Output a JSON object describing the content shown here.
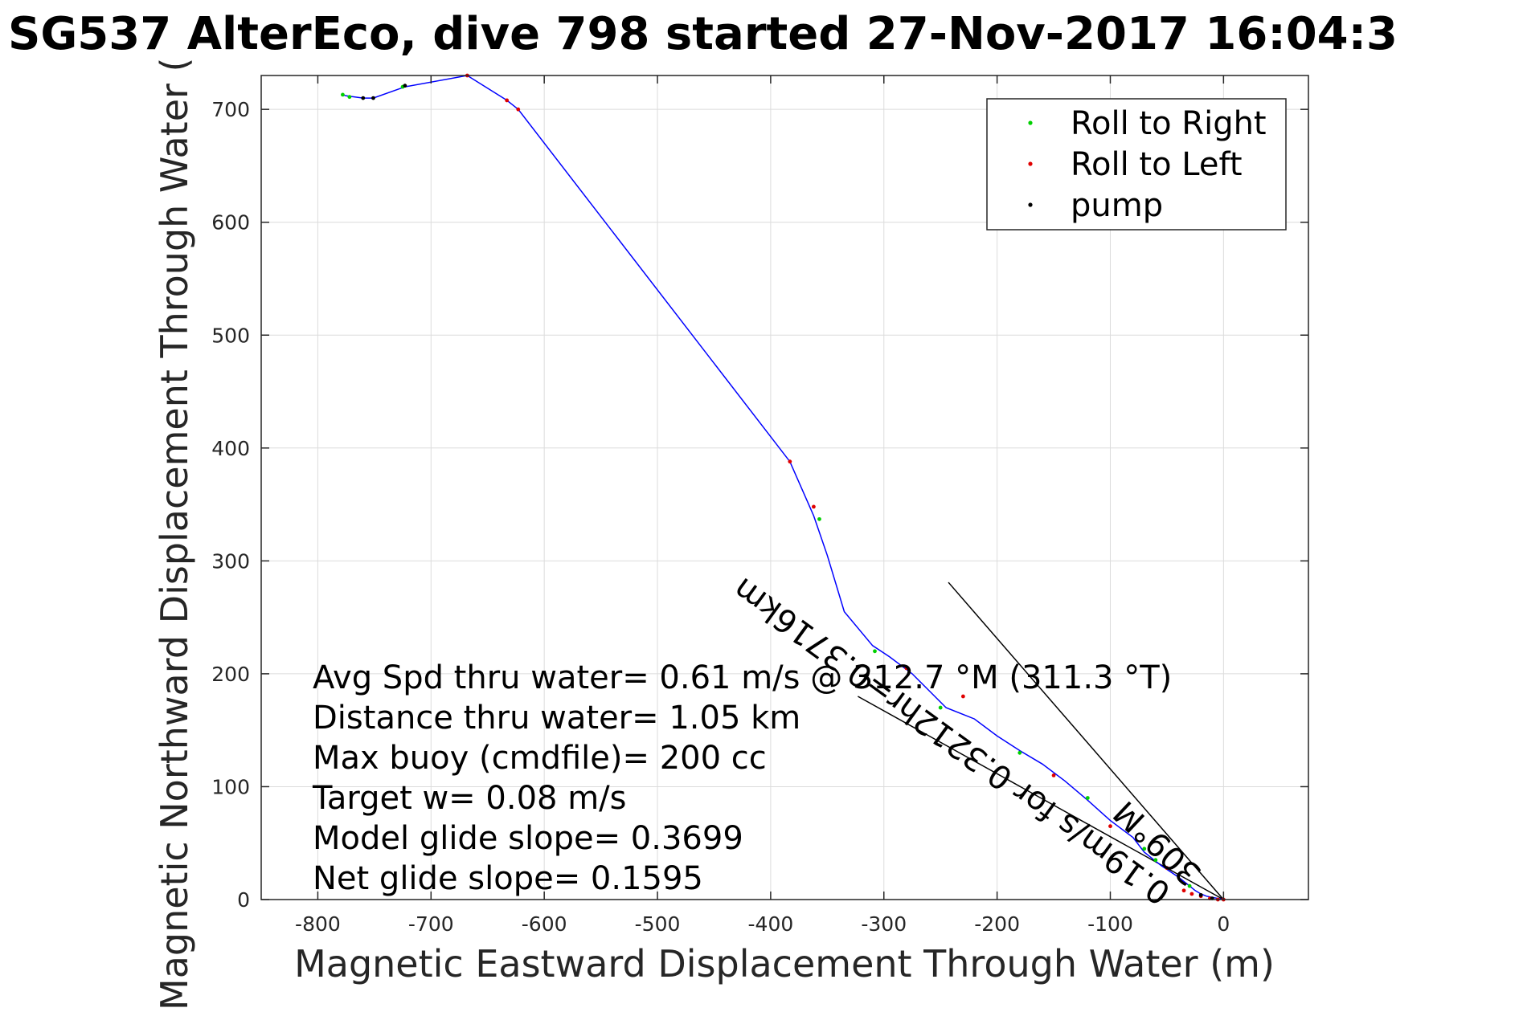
{
  "chart_data": {
    "type": "line",
    "title": "SG537 AlterEco, dive 798 started 27-Nov-2017 16:04:3",
    "xlabel": "Magnetic Eastward Displacement Through Water (m)",
    "ylabel": "Magnetic Northward Displacement Through Water (",
    "xlim": [
      -850,
      75
    ],
    "ylim": [
      0,
      730
    ],
    "xticks": [
      -800,
      -700,
      -600,
      -500,
      -400,
      -300,
      -200,
      -100,
      0
    ],
    "yticks": [
      0,
      100,
      200,
      300,
      400,
      500,
      600,
      700
    ],
    "grid": true,
    "legend_position": "top-right",
    "track": {
      "color": "#0000ff",
      "points": [
        [
          0,
          0
        ],
        [
          -5,
          1
        ],
        [
          -10,
          2
        ],
        [
          -15,
          3
        ],
        [
          -20,
          5
        ],
        [
          -25,
          8
        ],
        [
          -30,
          12
        ],
        [
          -40,
          20
        ],
        [
          -55,
          30
        ],
        [
          -70,
          42
        ],
        [
          -80,
          55
        ],
        [
          -100,
          70
        ],
        [
          -120,
          88
        ],
        [
          -140,
          105
        ],
        [
          -160,
          120
        ],
        [
          -180,
          132
        ],
        [
          -200,
          145
        ],
        [
          -220,
          160
        ],
        [
          -245,
          170
        ],
        [
          -260,
          185
        ],
        [
          -275,
          200
        ],
        [
          -295,
          215
        ],
        [
          -310,
          225
        ],
        [
          -335,
          255
        ],
        [
          -350,
          305
        ],
        [
          -362,
          340
        ],
        [
          -383,
          388
        ],
        [
          -623,
          700
        ],
        [
          -633,
          708
        ],
        [
          -668,
          730
        ],
        [
          -723,
          720
        ],
        [
          -751,
          710
        ],
        [
          -760,
          710
        ],
        [
          -775,
          712
        ],
        [
          -778,
          713
        ]
      ]
    },
    "series": [
      {
        "name": "Roll to Right",
        "color": "#00d000",
        "points": [
          [
            -778,
            713
          ],
          [
            -772,
            711
          ],
          [
            -725,
            720
          ],
          [
            -357,
            337
          ],
          [
            -308,
            220
          ],
          [
            -250,
            170
          ],
          [
            -180,
            130
          ],
          [
            -120,
            90
          ],
          [
            -70,
            45
          ],
          [
            -60,
            35
          ],
          [
            -30,
            12
          ]
        ]
      },
      {
        "name": "Roll to Left",
        "color": "#e00000",
        "points": [
          [
            -668,
            730
          ],
          [
            -633,
            708
          ],
          [
            -623,
            700
          ],
          [
            -383,
            388
          ],
          [
            -362,
            348
          ],
          [
            -280,
            205
          ],
          [
            -230,
            180
          ],
          [
            -150,
            110
          ],
          [
            -100,
            65
          ],
          [
            -50,
            28
          ],
          [
            -35,
            8
          ],
          [
            -28,
            5
          ],
          [
            -20,
            3
          ],
          [
            -12,
            1
          ],
          [
            -5,
            0
          ],
          [
            0,
            0
          ]
        ]
      },
      {
        "name": "pump",
        "color": "#000000",
        "points": [
          [
            -760,
            710
          ],
          [
            -751,
            710
          ],
          [
            -723,
            721
          ],
          [
            -20,
            4
          ],
          [
            -10,
            1
          ]
        ]
      }
    ],
    "lines": [
      {
        "name": "target-line",
        "color": "#000000",
        "from": [
          0,
          0
        ],
        "to": [
          -243,
          281
        ]
      },
      {
        "name": "heading-line",
        "color": "#000000",
        "from": [
          0,
          0
        ],
        "to": [
          -323,
          180
        ]
      }
    ],
    "stats": [
      "Avg Spd thru water=  0.61 m/s @ 312.7 °M (311.3 °T)",
      "Distance thru water=  1.05 km",
      "Max buoy (cmdfile)= 200 cc",
      "Target w= 0.08 m/s",
      "Model glide slope= 0.3699",
      "Net glide slope= 0.1595"
    ],
    "annotations": [
      {
        "name": "target-annotation",
        "text": "309°M",
        "x": -18,
        "y": 25,
        "angle": 223.4
      },
      {
        "name": "current-annotation",
        "text": "0.19m/s for 0.3212hr=0.3716km",
        "x": -45,
        "y": 10,
        "angle": 216
      }
    ]
  }
}
